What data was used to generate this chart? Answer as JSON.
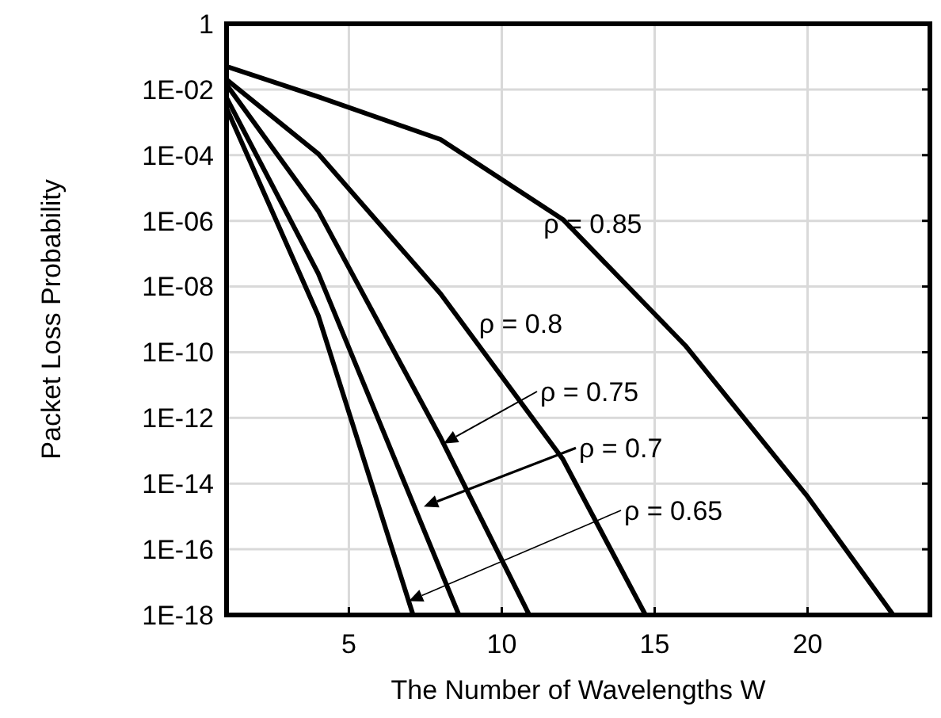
{
  "chart_data": {
    "type": "line",
    "xlabel": "The Number of Wavelengths W",
    "ylabel": "Packet Loss Probability",
    "log": "y",
    "grid": true,
    "marker": "none",
    "line_style": "solid",
    "xlim": [
      1,
      24
    ],
    "xticks": [
      5,
      10,
      15,
      20
    ],
    "ylim": [
      1e-18,
      1
    ],
    "yticks": [
      1,
      {
        "value": 0.01,
        "label": "1E-02"
      },
      {
        "value": 0.0001,
        "label": "1E-04"
      },
      {
        "value": 1e-06,
        "label": "1E-06"
      },
      {
        "value": 1e-08,
        "label": "1E-08"
      },
      {
        "value": 1e-10,
        "label": "1E-10"
      },
      {
        "value": 1e-12,
        "label": "1E-12"
      },
      {
        "value": 1e-14,
        "label": "1E-14"
      },
      {
        "value": 1e-16,
        "label": "1E-16"
      },
      {
        "value": 1e-18,
        "label": "1E-18"
      }
    ],
    "series": [
      {
        "color": "#000000",
        "x": [
          1,
          4,
          8,
          12,
          16,
          20,
          22.8
        ],
        "values": [
          0.05,
          0.006,
          0.0003,
          1.1e-06,
          1.6e-10,
          4e-15,
          1e-18
        ]
      },
      {
        "color": "#000000",
        "x": [
          1,
          4,
          8,
          12,
          14.7
        ],
        "values": [
          0.02,
          0.00011,
          6e-09,
          5.5e-14,
          1e-18
        ]
      },
      {
        "color": "#000000",
        "x": [
          1,
          4,
          8,
          10.9
        ],
        "values": [
          0.014,
          2e-06,
          2.5e-13,
          1e-18
        ]
      },
      {
        "color": "#000000",
        "x": [
          1,
          4,
          8.6
        ],
        "values": [
          0.0056,
          2.5e-08,
          1e-18
        ]
      },
      {
        "color": "#000000",
        "x": [
          1,
          4,
          7.1
        ],
        "values": [
          0.0027,
          1.3e-09,
          1e-18
        ]
      }
    ],
    "annotations": [
      {
        "text": "ρ = 0.85",
        "x": 10.9,
        "y": 5e-06
      },
      {
        "text": "ρ = 0.8",
        "x": 9.1,
        "y": 2.5e-10
      },
      "ρ = 0.75",
      {
        "text": "ρ = 0.7",
        "x": 7.45,
        "y": 2e-15
      },
      "ρ = 0.65"
    ]
  }
}
